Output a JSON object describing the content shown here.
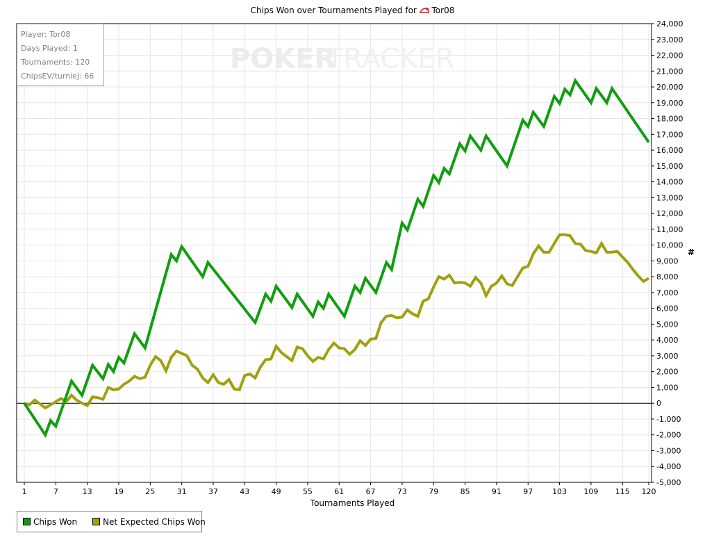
{
  "title": {
    "prefix": "Chips Won over Tournaments Played for",
    "player": "Tor08"
  },
  "watermark": {
    "left": "POKER",
    "right": "TRACKER"
  },
  "info_box": {
    "lines": [
      "Player: Tor08",
      "Days Played: 1",
      "Tournaments: 120",
      "ChipsEV/turniej: 66"
    ]
  },
  "legend": {
    "items": [
      "Chips Won",
      "Net Expected Chips Won"
    ]
  },
  "colors": {
    "chips_won": "#109e10",
    "net_expected": "#a0a010",
    "grid": "#e6e6e6",
    "zero_line": "#000000"
  },
  "chart_data": {
    "type": "line",
    "title": "Chips Won over Tournaments Played for Tor08",
    "xlabel": "Tournaments Played",
    "ylabel": "#",
    "xlim": [
      1,
      120
    ],
    "ylim": [
      -5000,
      24000
    ],
    "x_ticks": [
      1,
      7,
      13,
      19,
      25,
      31,
      37,
      43,
      49,
      55,
      61,
      67,
      73,
      79,
      85,
      91,
      97,
      103,
      109,
      115,
      120
    ],
    "y_ticks": [
      -5000,
      -4000,
      -3000,
      -2000,
      -1000,
      0,
      1000,
      2000,
      3000,
      4000,
      5000,
      6000,
      7000,
      8000,
      9000,
      10000,
      11000,
      12000,
      13000,
      14000,
      15000,
      16000,
      17000,
      18000,
      19000,
      20000,
      21000,
      22000,
      23000,
      24000
    ],
    "y_tick_labels": [
      "-5,000",
      "-4,000",
      "-3,000",
      "-2,000",
      "-1,000",
      "0",
      "1,000",
      "2,000",
      "3,000",
      "4,000",
      "5,000",
      "6,000",
      "7,000",
      "8,000",
      "9,000",
      "10,000",
      "11,000",
      "12,000",
      "13,000",
      "14,000",
      "15,000",
      "16,000",
      "17,000",
      "18,000",
      "19,000",
      "20,000",
      "21,000",
      "22,000",
      "23,000",
      "24,000"
    ],
    "grid": true,
    "legend_position": "bottom-left",
    "series": [
      {
        "name": "Chips Won",
        "color": "#109e10",
        "points": [
          [
            1,
            0
          ],
          [
            5,
            -2000
          ],
          [
            6,
            -1100
          ],
          [
            7,
            -1450
          ],
          [
            10,
            1400
          ],
          [
            12,
            500
          ],
          [
            14,
            2400
          ],
          [
            16,
            1550
          ],
          [
            17,
            2450
          ],
          [
            18,
            2000
          ],
          [
            19,
            2900
          ],
          [
            20,
            2550
          ],
          [
            22,
            4400
          ],
          [
            24,
            3500
          ],
          [
            29,
            9400
          ],
          [
            30,
            9000
          ],
          [
            31,
            9900
          ],
          [
            35,
            8000
          ],
          [
            36,
            8900
          ],
          [
            45,
            5100
          ],
          [
            47,
            6900
          ],
          [
            48,
            6450
          ],
          [
            49,
            7400
          ],
          [
            52,
            6050
          ],
          [
            53,
            6900
          ],
          [
            56,
            5500
          ],
          [
            57,
            6400
          ],
          [
            58,
            6000
          ],
          [
            59,
            6900
          ],
          [
            62,
            5500
          ],
          [
            64,
            7400
          ],
          [
            65,
            7000
          ],
          [
            66,
            7900
          ],
          [
            68,
            7000
          ],
          [
            70,
            8900
          ],
          [
            71,
            8450
          ],
          [
            73,
            11400
          ],
          [
            74,
            10950
          ],
          [
            76,
            12900
          ],
          [
            77,
            12450
          ],
          [
            79,
            14400
          ],
          [
            80,
            13950
          ],
          [
            81,
            14850
          ],
          [
            82,
            14500
          ],
          [
            84,
            16400
          ],
          [
            85,
            15950
          ],
          [
            86,
            16900
          ],
          [
            88,
            16000
          ],
          [
            89,
            16900
          ],
          [
            93,
            15000
          ],
          [
            96,
            17900
          ],
          [
            97,
            17500
          ],
          [
            98,
            18400
          ],
          [
            100,
            17500
          ],
          [
            102,
            19400
          ],
          [
            103,
            18950
          ],
          [
            104,
            19850
          ],
          [
            105,
            19500
          ],
          [
            106,
            20400
          ],
          [
            109,
            19000
          ],
          [
            110,
            19900
          ],
          [
            112,
            19000
          ],
          [
            113,
            19900
          ],
          [
            120,
            16500
          ]
        ]
      },
      {
        "name": "Net Expected Chips Won",
        "color": "#a0a010",
        "points": [
          [
            1,
            0
          ],
          [
            2,
            -100
          ],
          [
            3,
            200
          ],
          [
            5,
            -300
          ],
          [
            6,
            -100
          ],
          [
            8,
            300
          ],
          [
            9,
            100
          ],
          [
            10,
            500
          ],
          [
            11,
            200
          ],
          [
            12,
            0
          ],
          [
            13,
            -150
          ],
          [
            14,
            400
          ],
          [
            15,
            350
          ],
          [
            16,
            250
          ],
          [
            17,
            1000
          ],
          [
            18,
            850
          ],
          [
            19,
            900
          ],
          [
            20,
            1200
          ],
          [
            21,
            1400
          ],
          [
            22,
            1700
          ],
          [
            23,
            1550
          ],
          [
            24,
            1650
          ],
          [
            25,
            2400
          ],
          [
            26,
            2950
          ],
          [
            27,
            2700
          ],
          [
            28,
            2050
          ],
          [
            29,
            2900
          ],
          [
            30,
            3300
          ],
          [
            31,
            3150
          ],
          [
            32,
            3000
          ],
          [
            33,
            2400
          ],
          [
            34,
            2150
          ],
          [
            35,
            1600
          ],
          [
            36,
            1300
          ],
          [
            37,
            1800
          ],
          [
            38,
            1300
          ],
          [
            39,
            1200
          ],
          [
            40,
            1500
          ],
          [
            41,
            900
          ],
          [
            42,
            850
          ],
          [
            43,
            1750
          ],
          [
            44,
            1850
          ],
          [
            45,
            1600
          ],
          [
            46,
            2300
          ],
          [
            47,
            2750
          ],
          [
            48,
            2800
          ],
          [
            49,
            3600
          ],
          [
            50,
            3200
          ],
          [
            51,
            2950
          ],
          [
            52,
            2700
          ],
          [
            53,
            3550
          ],
          [
            54,
            3450
          ],
          [
            55,
            3000
          ],
          [
            56,
            2650
          ],
          [
            57,
            2900
          ],
          [
            58,
            2800
          ],
          [
            59,
            3400
          ],
          [
            60,
            3800
          ],
          [
            61,
            3500
          ],
          [
            62,
            3450
          ],
          [
            63,
            3100
          ],
          [
            64,
            3400
          ],
          [
            65,
            3950
          ],
          [
            66,
            3650
          ],
          [
            67,
            4050
          ],
          [
            68,
            4100
          ],
          [
            69,
            5100
          ],
          [
            70,
            5500
          ],
          [
            71,
            5550
          ],
          [
            72,
            5400
          ],
          [
            73,
            5450
          ],
          [
            74,
            5900
          ],
          [
            75,
            5650
          ],
          [
            76,
            5500
          ],
          [
            77,
            6450
          ],
          [
            78,
            6600
          ],
          [
            79,
            7350
          ],
          [
            80,
            8000
          ],
          [
            81,
            7850
          ],
          [
            82,
            8100
          ],
          [
            83,
            7600
          ],
          [
            84,
            7650
          ],
          [
            85,
            7600
          ],
          [
            86,
            7400
          ],
          [
            87,
            7950
          ],
          [
            88,
            7600
          ],
          [
            89,
            6800
          ],
          [
            90,
            7400
          ],
          [
            91,
            7600
          ],
          [
            92,
            8050
          ],
          [
            93,
            7550
          ],
          [
            94,
            7450
          ],
          [
            95,
            8000
          ],
          [
            96,
            8550
          ],
          [
            97,
            8650
          ],
          [
            98,
            9450
          ],
          [
            99,
            9950
          ],
          [
            100,
            9550
          ],
          [
            101,
            9550
          ],
          [
            102,
            10100
          ],
          [
            103,
            10650
          ],
          [
            104,
            10650
          ],
          [
            105,
            10600
          ],
          [
            106,
            10100
          ],
          [
            107,
            10050
          ],
          [
            108,
            9650
          ],
          [
            109,
            9600
          ],
          [
            110,
            9500
          ],
          [
            111,
            10100
          ],
          [
            112,
            9550
          ],
          [
            113,
            9550
          ],
          [
            114,
            9600
          ],
          [
            115,
            9250
          ],
          [
            116,
            8900
          ],
          [
            117,
            8450
          ],
          [
            118,
            8050
          ],
          [
            119,
            7700
          ],
          [
            120,
            7900
          ]
        ]
      }
    ]
  }
}
